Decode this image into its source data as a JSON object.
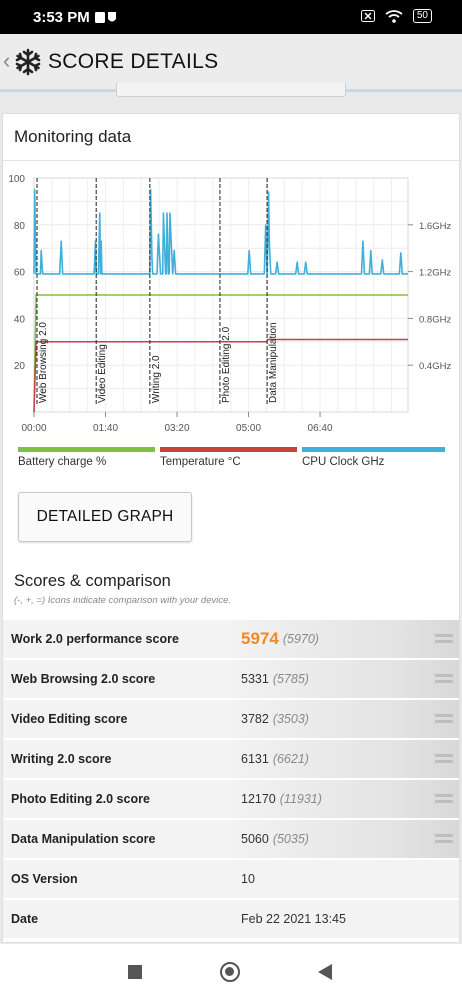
{
  "status_bar": {
    "time": "3:53 PM",
    "battery": "50"
  },
  "app_bar": {
    "back": "‹",
    "title": "SCORE DETAILS"
  },
  "monitoring": {
    "title": "Monitoring data"
  },
  "chart_data": {
    "type": "line",
    "x_ticks": [
      "00:00",
      "01:40",
      "03:20",
      "05:00",
      "06:40"
    ],
    "y_left_ticks": [
      "20",
      "40",
      "60",
      "80",
      "100"
    ],
    "y_right_ticks": [
      "0.4GHz",
      "0.8GHz",
      "1.2GHz",
      "1.6GHz"
    ],
    "ylim_left": [
      0,
      100
    ],
    "ylim_right": [
      0,
      2.0
    ],
    "grid": true,
    "segments": [
      {
        "label": "Web Browsing 2.0",
        "start_s": 0
      },
      {
        "label": "Video Editing",
        "start_s": 87
      },
      {
        "label": "Writing 2.0",
        "start_s": 162
      },
      {
        "label": "Photo Editing 2.0",
        "start_s": 260
      },
      {
        "label": "Data Manipulation",
        "start_s": 326
      }
    ],
    "x_max_s": 523,
    "series": [
      {
        "name": "Battery charge %",
        "color": "#7dc242",
        "axis": "left",
        "x": [
          0,
          3,
          523
        ],
        "y": [
          0,
          50,
          50
        ]
      },
      {
        "name": "Temperature °C",
        "color": "#c8413b",
        "axis": "left",
        "x": [
          0,
          3,
          325,
          327,
          523
        ],
        "y": [
          0,
          30,
          30,
          31,
          31
        ]
      },
      {
        "name": "CPU Clock GHz",
        "color": "#3fb0db",
        "axis": "right",
        "x": [
          0,
          1,
          2,
          3,
          9,
          10,
          12,
          13,
          14,
          36,
          38,
          40,
          43,
          44,
          84,
          86,
          87,
          88,
          90,
          92,
          93,
          94,
          95,
          162,
          163,
          164,
          165,
          166,
          167,
          172,
          174,
          177,
          180,
          181,
          184,
          185,
          186,
          188,
          189,
          190,
          194,
          196,
          198,
          299,
          301,
          303,
          322,
          324,
          326,
          327,
          328,
          329,
          331,
          333,
          334,
          338,
          340,
          342,
          366,
          368,
          370,
          378,
          380,
          382,
          458,
          460,
          462,
          469,
          471,
          473,
          485,
          487,
          489,
          511,
          513,
          515,
          523
        ],
        "y": [
          1.18,
          1.9,
          1.5,
          1.18,
          1.18,
          1.38,
          1.18,
          1.18,
          1.18,
          1.18,
          1.46,
          1.18,
          1.18,
          1.18,
          1.18,
          1.46,
          1.18,
          1.18,
          1.18,
          1.7,
          1.18,
          1.46,
          1.18,
          1.18,
          1.9,
          1.6,
          1.3,
          1.18,
          1.18,
          1.18,
          1.52,
          1.18,
          1.18,
          1.7,
          1.18,
          1.18,
          1.7,
          1.18,
          1.18,
          1.7,
          1.18,
          1.38,
          1.18,
          1.18,
          1.38,
          1.18,
          1.18,
          1.6,
          1.18,
          1.46,
          1.88,
          1.46,
          1.18,
          1.18,
          1.18,
          1.18,
          1.28,
          1.18,
          1.18,
          1.28,
          1.18,
          1.18,
          1.28,
          1.18,
          1.18,
          1.46,
          1.18,
          1.18,
          1.38,
          1.18,
          1.18,
          1.3,
          1.18,
          1.18,
          1.36,
          1.18,
          1.18
        ]
      }
    ]
  },
  "legend": [
    {
      "label": "Battery charge %",
      "color": "#7dc242"
    },
    {
      "label": "Temperature °C",
      "color": "#c8413b"
    },
    {
      "label": "CPU Clock GHz",
      "color": "#3fb0db"
    }
  ],
  "detailed_button": "DETAILED GRAPH",
  "scores": {
    "title": "Scores & comparison",
    "subtitle": "(-, +, =) Icons indicate comparison with your device.",
    "rows": [
      {
        "label": "Work 2.0 performance score",
        "value": "5974",
        "compare": "(5970)",
        "icon": "equal-icon"
      },
      {
        "label": "Web Browsing 2.0 score",
        "value": "5331",
        "compare": "(5785)",
        "icon": "equal-icon"
      },
      {
        "label": "Video Editing score",
        "value": "3782",
        "compare": "(3503)",
        "icon": "equal-icon"
      },
      {
        "label": "Writing 2.0 score",
        "value": "6131",
        "compare": "(6621)",
        "icon": "equal-icon"
      },
      {
        "label": "Photo Editing 2.0 score",
        "value": "12170",
        "compare": "(11931)",
        "icon": "equal-icon"
      },
      {
        "label": "Data Manipulation score",
        "value": "5060",
        "compare": "(5035)",
        "icon": "equal-icon"
      },
      {
        "label": "OS Version",
        "value": "10"
      },
      {
        "label": "Date",
        "value": "Feb 22 2021 13:45"
      }
    ]
  }
}
